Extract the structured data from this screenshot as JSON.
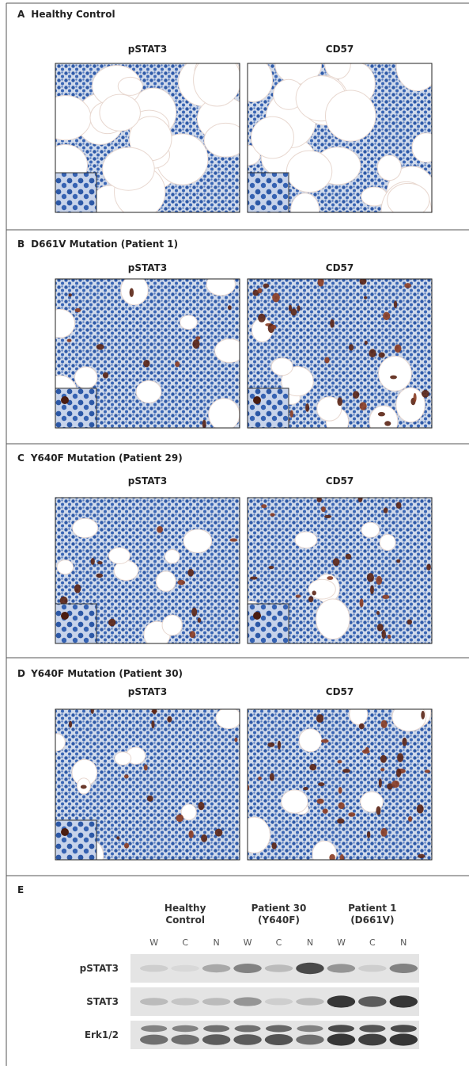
{
  "panels": [
    {
      "letter": "A",
      "title": "Healthy Control",
      "images": [
        "pSTAT3",
        "CD57"
      ]
    },
    {
      "letter": "B",
      "title": "D661V Mutation (Patient 1)",
      "images": [
        "pSTAT3",
        "CD57"
      ]
    },
    {
      "letter": "C",
      "title": "Y640F Mutation (Patient 29)",
      "images": [
        "pSTAT3",
        "CD57"
      ]
    },
    {
      "letter": "D",
      "title": "Y640F Mutation (Patient 30)",
      "images": [
        "pSTAT3",
        "CD57"
      ]
    }
  ],
  "blot": {
    "letter": "E",
    "groups": [
      [
        "Healthy",
        "Control"
      ],
      [
        "Patient 30",
        "(Y640F)"
      ],
      [
        "Patient 1",
        "(D661V)"
      ]
    ],
    "lanes": [
      "W",
      "C",
      "N",
      "W",
      "C",
      "N",
      "W",
      "C",
      "N"
    ],
    "rows": [
      "pSTAT3",
      "STAT3",
      "Erk1/2"
    ]
  }
}
